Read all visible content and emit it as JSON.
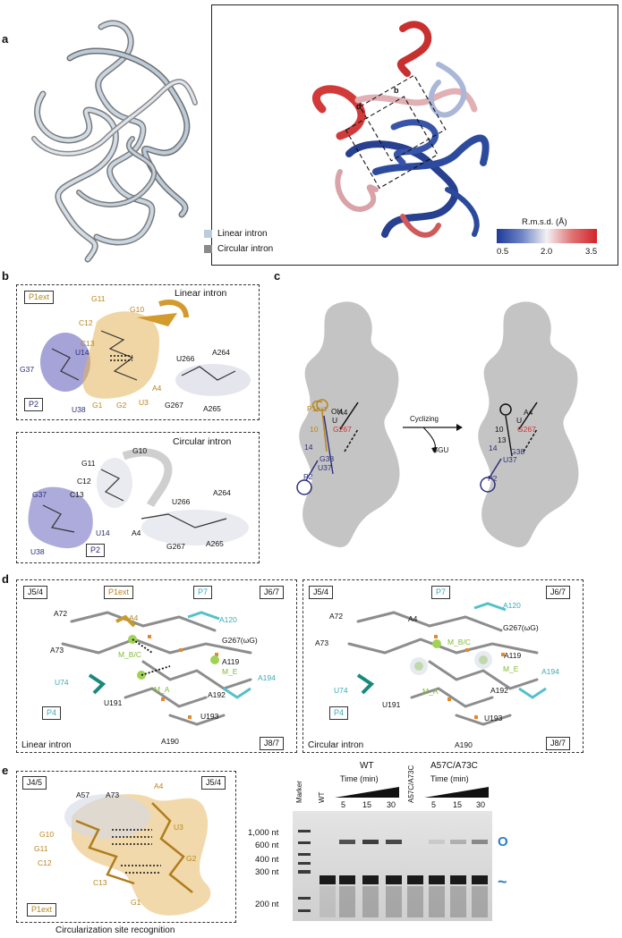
{
  "panels": {
    "a": {
      "label": "a",
      "legend": [
        "Linear intron",
        "Circular intron"
      ],
      "legend_colors": [
        "#b8cde0",
        "#8a8a8a"
      ],
      "colorbar_title": "R.m.s.d. (Å)",
      "colorbar_ticks": [
        "0.5",
        "2.0",
        "3.5"
      ],
      "inset_labels": [
        "b",
        "d"
      ]
    },
    "b": {
      "label": "b",
      "top": {
        "title": "Linear intron",
        "tags": [
          "P1ext",
          "P2"
        ],
        "labels": [
          "G11",
          "G10",
          "C12",
          "C13",
          "U14",
          "G37",
          "U38",
          "G1",
          "G2",
          "U3",
          "A4",
          "U266",
          "A264",
          "G267",
          "A265"
        ]
      },
      "bottom": {
        "title": "Circular intron",
        "tags": [
          "P2"
        ],
        "labels": [
          "G10",
          "G11",
          "C12",
          "C13",
          "G37",
          "U14",
          "U38",
          "A4",
          "U266",
          "A264",
          "G267",
          "A265"
        ]
      }
    },
    "c": {
      "label": "c",
      "arrow_label": "Cyclizing",
      "byproduct": "GGU",
      "left_labels": [
        "P1ext",
        "OH",
        "U",
        "A4",
        "G267",
        "10",
        "14",
        "P2",
        "G38",
        "U37"
      ],
      "right_labels": [
        "U",
        "A4",
        "G267",
        "10",
        "13",
        "14",
        "P2",
        "U37",
        "G38"
      ]
    },
    "d": {
      "label": "d",
      "left": {
        "tags": [
          "J5/4",
          "P1ext",
          "P7",
          "J6/7",
          "P4",
          "J8/7"
        ],
        "footer": "Linear intron",
        "labels": [
          "A72",
          "A4",
          "A120",
          "G267(ωG)",
          "A73",
          "M_B/C",
          "A119",
          "U74",
          "M_E",
          "A194",
          "M_A",
          "A192",
          "U191",
          "U193",
          "A190"
        ]
      },
      "right": {
        "tags": [
          "J5/4",
          "P7",
          "J6/7",
          "P4",
          "J8/7"
        ],
        "footer": "Circular intron",
        "labels": [
          "A72",
          "A4",
          "A120",
          "G267(ωG)",
          "A73",
          "M_B/C",
          "A119",
          "U74",
          "M_E",
          "A194",
          "M_A",
          "A192",
          "U191",
          "U193",
          "A190"
        ]
      }
    },
    "e": {
      "label": "e",
      "tags": [
        "J4/5",
        "J5/4",
        "P1ext"
      ],
      "labels": [
        "A57",
        "A73",
        "A4",
        "U3",
        "G10",
        "G11",
        "C12",
        "G2",
        "C13",
        "G1"
      ],
      "caption": "Circularization site recognition",
      "gel": {
        "lane_headers": [
          "Marker",
          "WT",
          "WT",
          "A57C/A73C",
          "A57C/A73C"
        ],
        "group_titles": [
          "WT",
          "A57C/A73C"
        ],
        "time_label": "Time (min)",
        "time_points": [
          "5",
          "15",
          "30"
        ],
        "size_markers": [
          "1,000 nt",
          "600 nt",
          "400 nt",
          "300 nt",
          "200 nt"
        ],
        "wt_circular_band": [
          0.75,
          0.85,
          0.8
        ],
        "mut_circular_band": [
          0.1,
          0.25,
          0.45
        ],
        "right_symbols": [
          "O",
          "~"
        ]
      }
    }
  }
}
